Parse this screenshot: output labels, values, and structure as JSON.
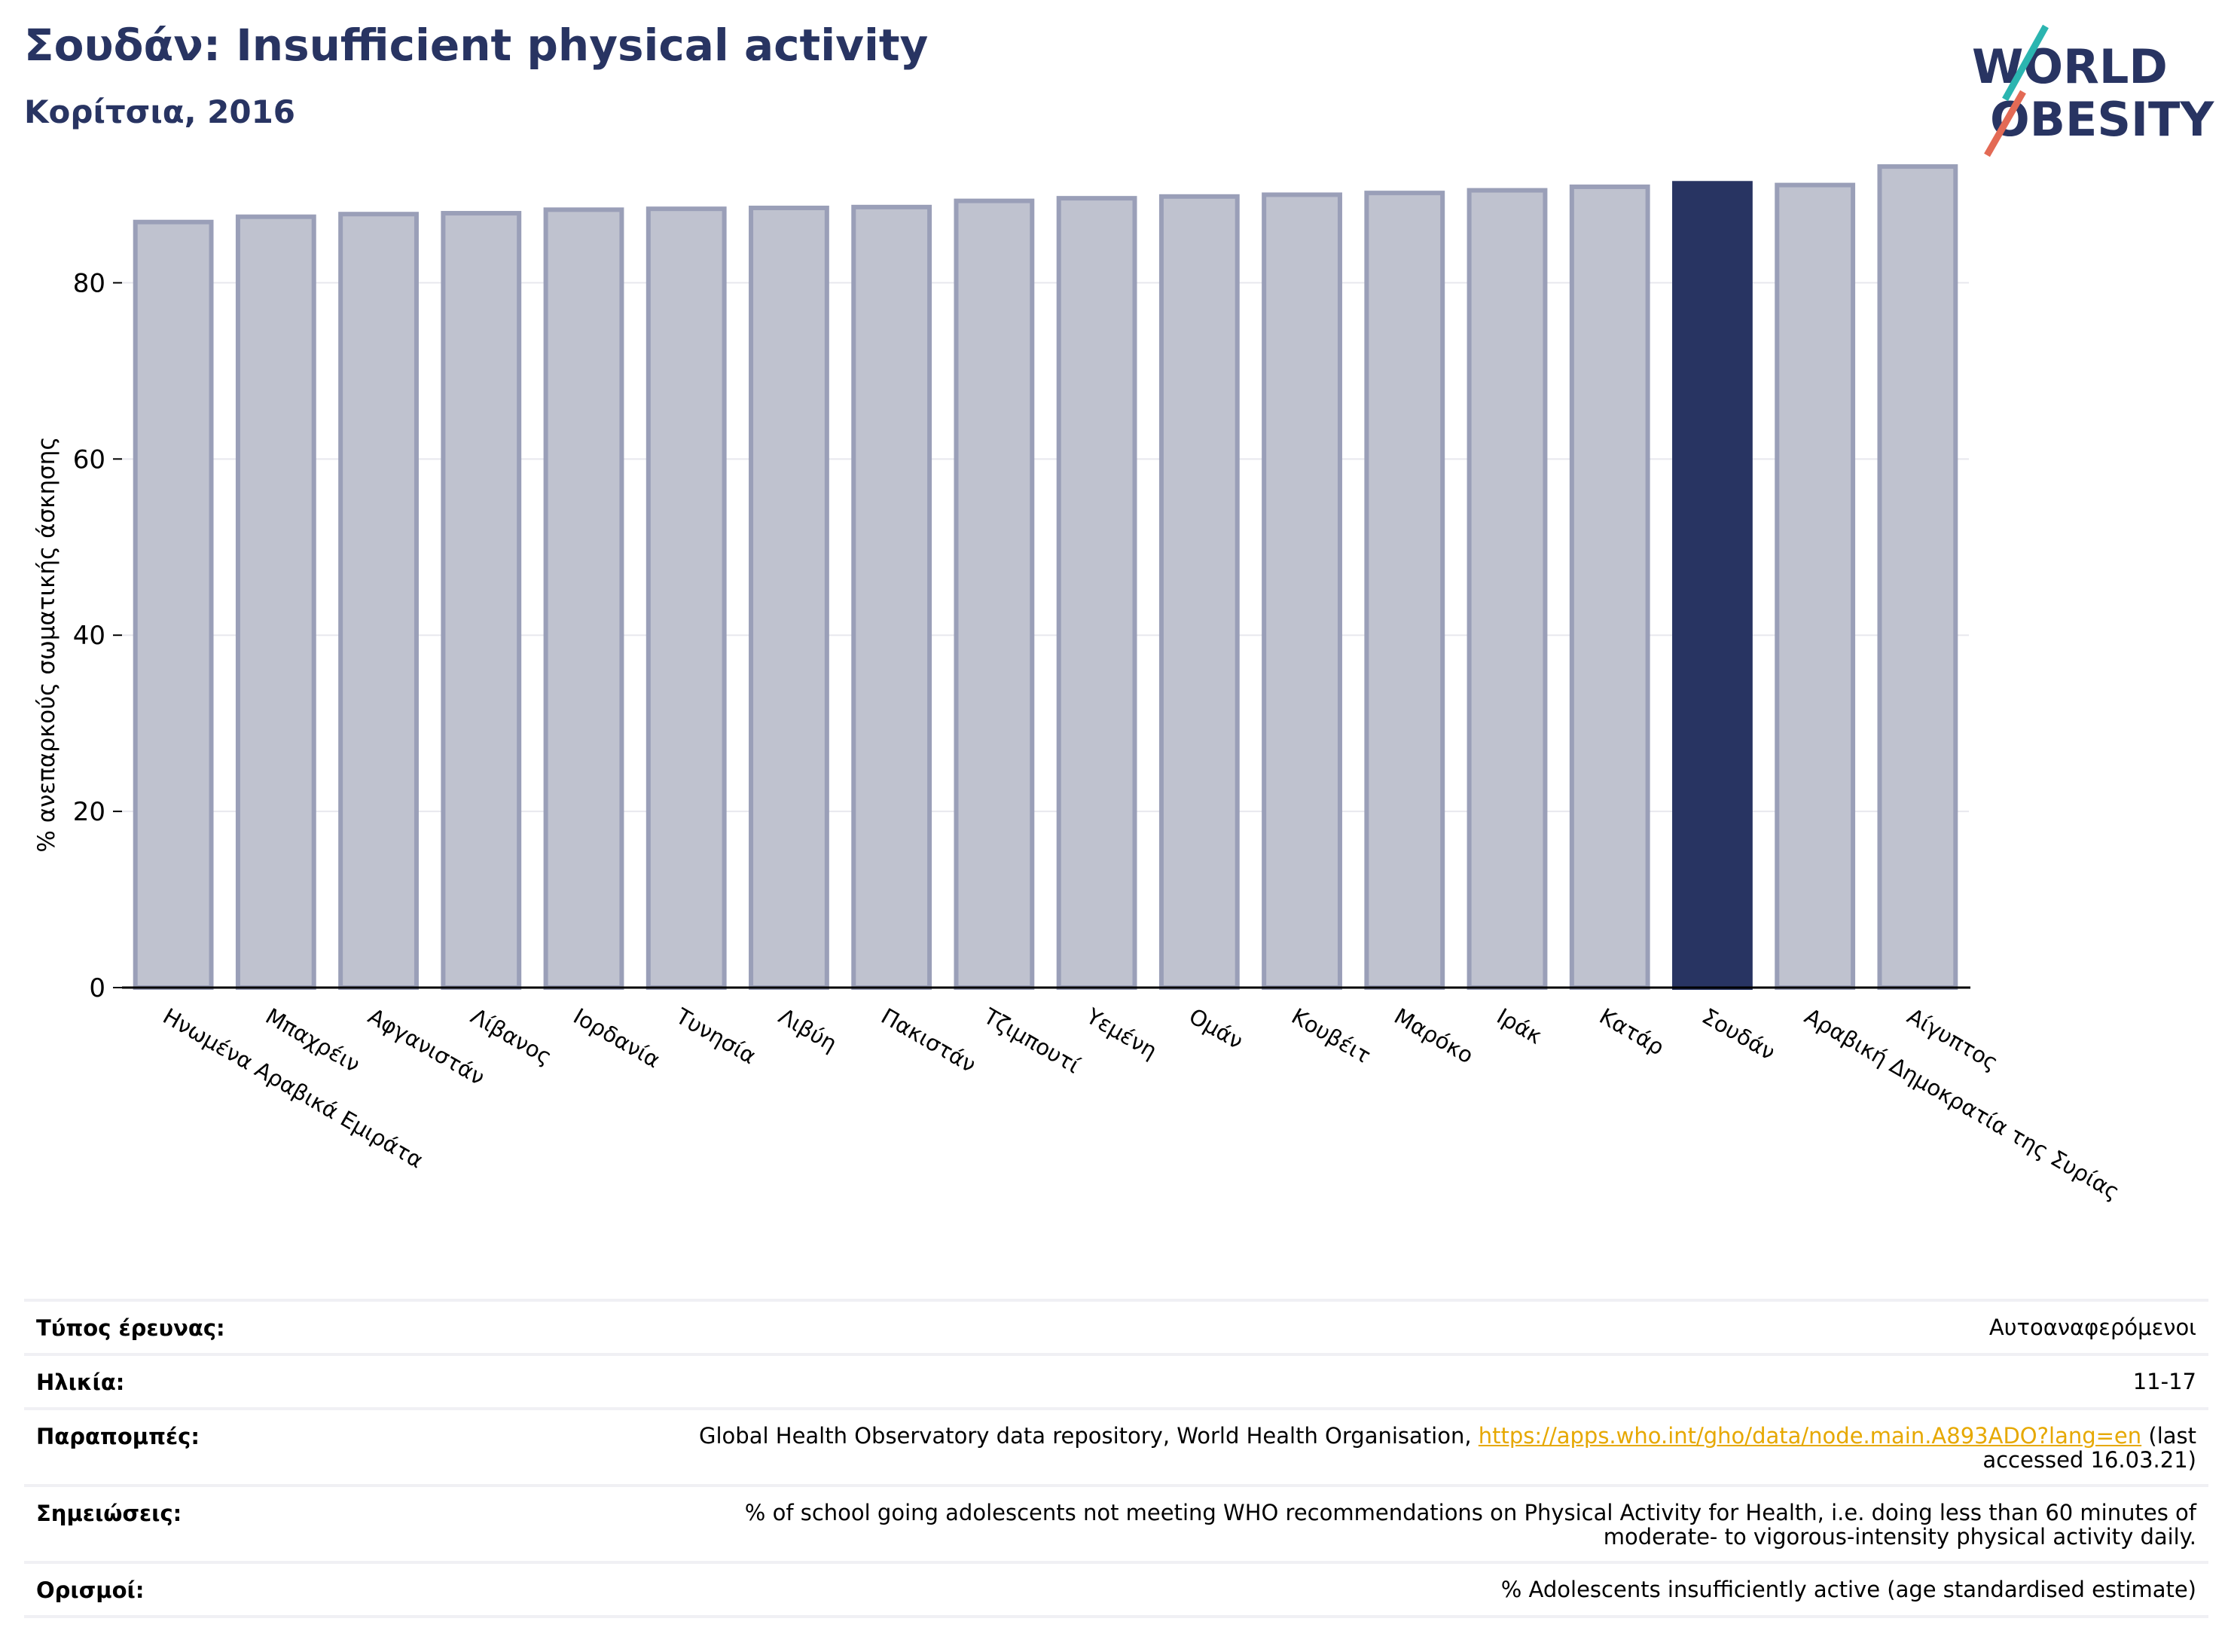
{
  "header": {
    "title": "Σουδάν: Insufficient physical activity",
    "subtitle": "Κορίτσια, 2016"
  },
  "logo": {
    "line1": "WORLD",
    "line2": "OBESITY"
  },
  "colors": {
    "highlight": "#283462",
    "bar_fill": "#bfc2cf",
    "bar_stroke": "#9a9fb8",
    "grid": "#e8e8ee"
  },
  "chart_data": {
    "type": "bar",
    "ylabel": "% ανεπαρκούς σωματικής άσκησης",
    "ylim": [
      0,
      95
    ],
    "yticks": [
      0,
      20,
      40,
      60,
      80
    ],
    "grid": true,
    "highlight": "Σουδάν",
    "categories": [
      "Ηνωμένα Αραβικά Εμιράτα",
      "Μπαχρέιν",
      "Αφγανιστάν",
      "Λίβανος",
      "Ιορδανία",
      "Τυνησία",
      "Λιβύη",
      "Πακιστάν",
      "Τζιμπουτί",
      "Υεμένη",
      "Ομάν",
      "Κουβέιτ",
      "Μαρόκο",
      "Ιράκ",
      "Κατάρ",
      "Σουδάν",
      "Αραβική Δημοκρατία της Συρίας",
      "Αίγυπτος"
    ],
    "values": [
      86.9,
      87.5,
      87.8,
      87.9,
      88.3,
      88.4,
      88.5,
      88.6,
      89.3,
      89.6,
      89.8,
      90.0,
      90.2,
      90.5,
      90.9,
      91.3,
      91.1,
      93.2
    ]
  },
  "info": {
    "rows": [
      {
        "key": "Τύπος έρευνας:",
        "value": "Αυτοαναφερόμενοι"
      },
      {
        "key": "Ηλικία:",
        "value": "11-17"
      },
      {
        "key": "Παραπομπές:",
        "value_before": "Global Health Observatory data repository, World Health Organisation, ",
        "link": "https://apps.who.int/gho/data/node.main.A893ADO?lang=en",
        "value_after": " (last accessed 16.03.21)"
      },
      {
        "key": "Σημειώσεις:",
        "value": "% of school going adolescents not meeting WHO recommendations on Physical Activity for Health, i.e. doing less than 60 minutes of moderate- to vigorous-intensity physical activity daily."
      },
      {
        "key": "Ορισμοί:",
        "value": "% Adolescents insufficiently active (age standardised estimate)"
      }
    ]
  }
}
